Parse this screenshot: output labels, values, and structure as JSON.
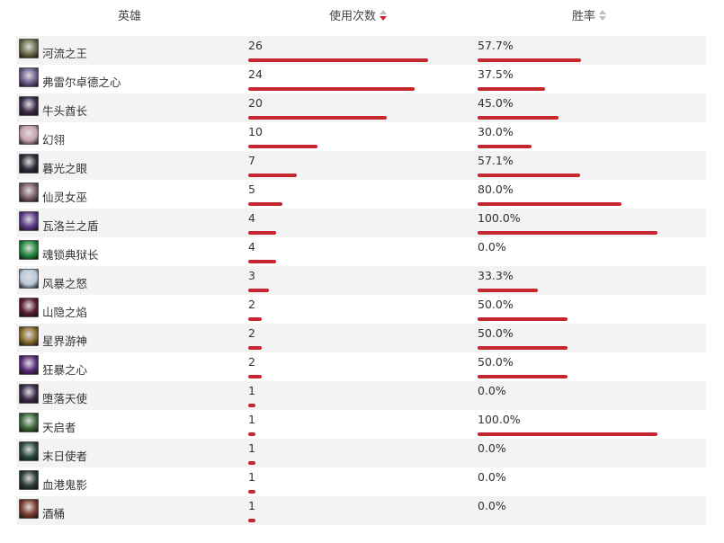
{
  "headers": {
    "hero": "英雄",
    "usage": "使用次数",
    "winrate": "胜率"
  },
  "sort": {
    "active_column": "usage",
    "direction": "desc"
  },
  "colors": {
    "bar": "#c4272d",
    "row_alt": "#f3f3f3",
    "sort_active": "#c8282d"
  },
  "heroes": [
    {
      "name": "河流之王",
      "usage": "26",
      "usage_count": 26,
      "winrate": "57.7%",
      "winrate_value": 57.7,
      "avatar_color": "#6b6a4a"
    },
    {
      "name": "弗雷尔卓德之心",
      "usage": "24",
      "usage_count": 24,
      "winrate": "37.5%",
      "winrate_value": 37.5,
      "avatar_color": "#6a5a8c"
    },
    {
      "name": "牛头酋长",
      "usage": "20",
      "usage_count": 20,
      "winrate": "45.0%",
      "winrate_value": 45.0,
      "avatar_color": "#3a2b4a"
    },
    {
      "name": "幻翎",
      "usage": "10",
      "usage_count": 10,
      "winrate": "30.0%",
      "winrate_value": 30.0,
      "avatar_color": "#c8a0a8"
    },
    {
      "name": "暮光之眼",
      "usage": "7",
      "usage_count": 7,
      "winrate": "57.1%",
      "winrate_value": 57.1,
      "avatar_color": "#2b2e38"
    },
    {
      "name": "仙灵女巫",
      "usage": "5",
      "usage_count": 5,
      "winrate": "80.0%",
      "winrate_value": 80.0,
      "avatar_color": "#7a5a6a"
    },
    {
      "name": "瓦洛兰之盾",
      "usage": "4",
      "usage_count": 4,
      "winrate": "100.0%",
      "winrate_value": 100.0,
      "avatar_color": "#5a3a8a"
    },
    {
      "name": "魂锁典狱长",
      "usage": "4",
      "usage_count": 4,
      "winrate": "0.0%",
      "winrate_value": 0.0,
      "avatar_color": "#1f8a3a"
    },
    {
      "name": "风暴之怒",
      "usage": "3",
      "usage_count": 3,
      "winrate": "33.3%",
      "winrate_value": 33.3,
      "avatar_color": "#b8c8d8"
    },
    {
      "name": "山隐之焰",
      "usage": "2",
      "usage_count": 2,
      "winrate": "50.0%",
      "winrate_value": 50.0,
      "avatar_color": "#5a1a2a"
    },
    {
      "name": "星界游神",
      "usage": "2",
      "usage_count": 2,
      "winrate": "50.0%",
      "winrate_value": 50.0,
      "avatar_color": "#8a6a2a"
    },
    {
      "name": "狂暴之心",
      "usage": "2",
      "usage_count": 2,
      "winrate": "50.0%",
      "winrate_value": 50.0,
      "avatar_color": "#5a2a7a"
    },
    {
      "name": "堕落天使",
      "usage": "1",
      "usage_count": 1,
      "winrate": "0.0%",
      "winrate_value": 0.0,
      "avatar_color": "#3a2a4a"
    },
    {
      "name": "天启者",
      "usage": "1",
      "usage_count": 1,
      "winrate": "100.0%",
      "winrate_value": 100.0,
      "avatar_color": "#3a6a3a"
    },
    {
      "name": "末日使者",
      "usage": "1",
      "usage_count": 1,
      "winrate": "0.0%",
      "winrate_value": 0.0,
      "avatar_color": "#2a4a3a"
    },
    {
      "name": "血港鬼影",
      "usage": "1",
      "usage_count": 1,
      "winrate": "0.0%",
      "winrate_value": 0.0,
      "avatar_color": "#2a3a3a"
    },
    {
      "name": "酒桶",
      "usage": "1",
      "usage_count": 1,
      "winrate": "0.0%",
      "winrate_value": 0.0,
      "avatar_color": "#7a3a2a"
    }
  ]
}
